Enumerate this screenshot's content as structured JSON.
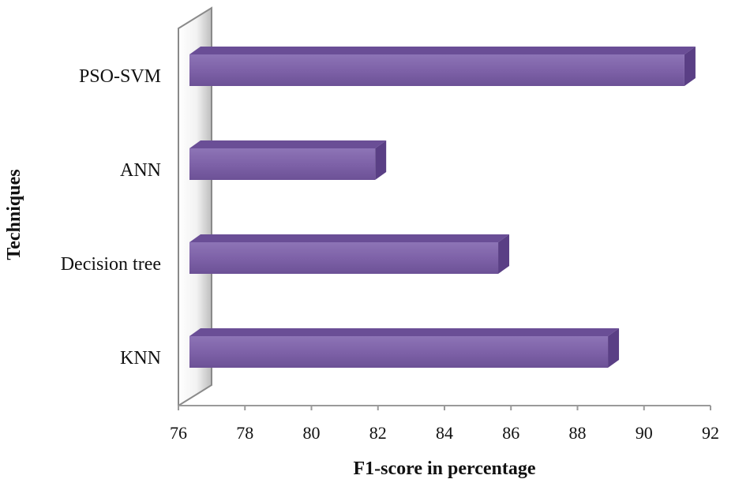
{
  "chart_data": {
    "type": "bar",
    "orientation": "horizontal",
    "categories": [
      "KNN",
      "Decision tree",
      "ANN",
      "PSO-SVM"
    ],
    "values": [
      89.2,
      85.9,
      82.2,
      91.5
    ],
    "xlabel": "F1-score in percentage",
    "ylabel": "Techniques",
    "xlim": [
      76,
      92
    ],
    "xticks": [
      76,
      78,
      80,
      82,
      84,
      86,
      88,
      90,
      92
    ],
    "grid": false,
    "bar_color": "#7e62a8",
    "bar_top_color": "#6a4e96",
    "bar_end_color": "#5a3f85"
  }
}
